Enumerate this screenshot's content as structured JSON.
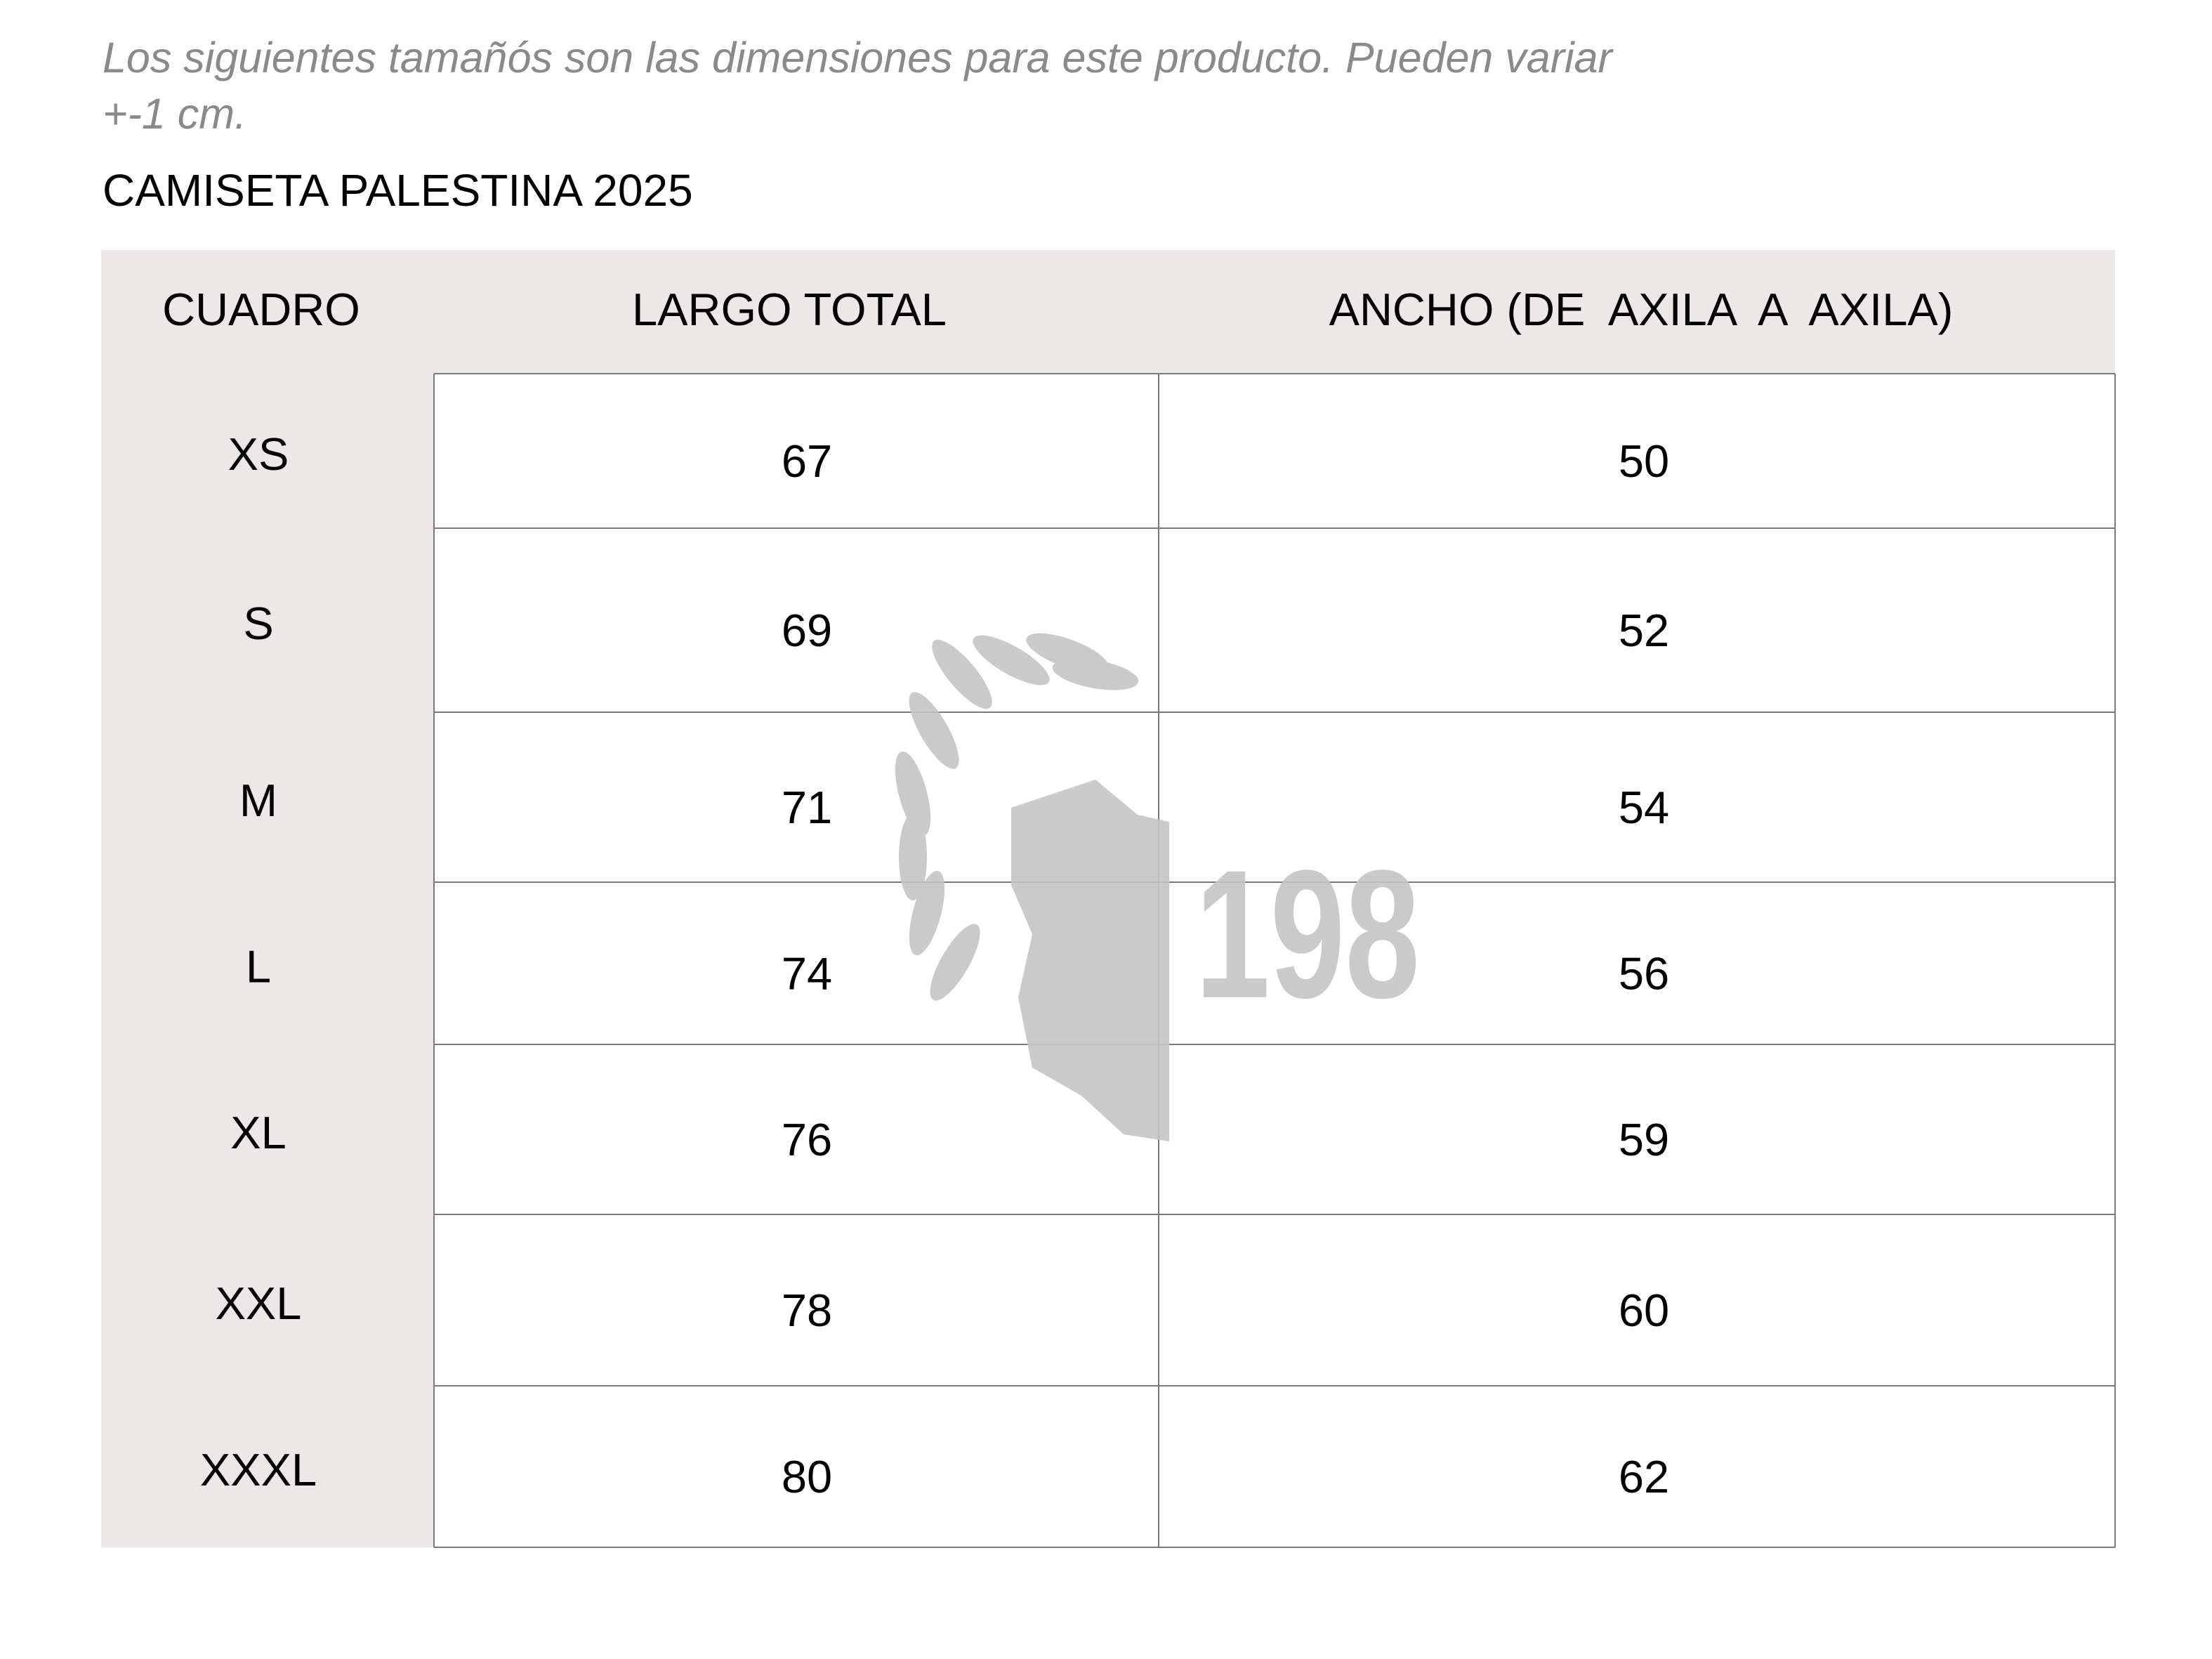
{
  "note": {
    "lines": [
      "Los siguientes tamañós son las dimensiones para este producto. Pueden variar",
      "+-1 cm."
    ]
  },
  "title": "CAMISETA PALESTINA 2025",
  "table": {
    "headers": [
      "CUADRO",
      "LARGO TOTAL",
      "ANCHO (DE  AXILA  A  AXILA)"
    ],
    "rows": [
      [
        "XS",
        "67",
        "50"
      ],
      [
        "S",
        "69",
        "52"
      ],
      [
        "M",
        "71",
        "54"
      ],
      [
        "L",
        "74",
        "56"
      ],
      [
        "XL",
        "76",
        "59"
      ],
      [
        "XXL",
        "78",
        "60"
      ],
      [
        "XXXL",
        "80",
        "62"
      ]
    ]
  },
  "watermark": "198"
}
